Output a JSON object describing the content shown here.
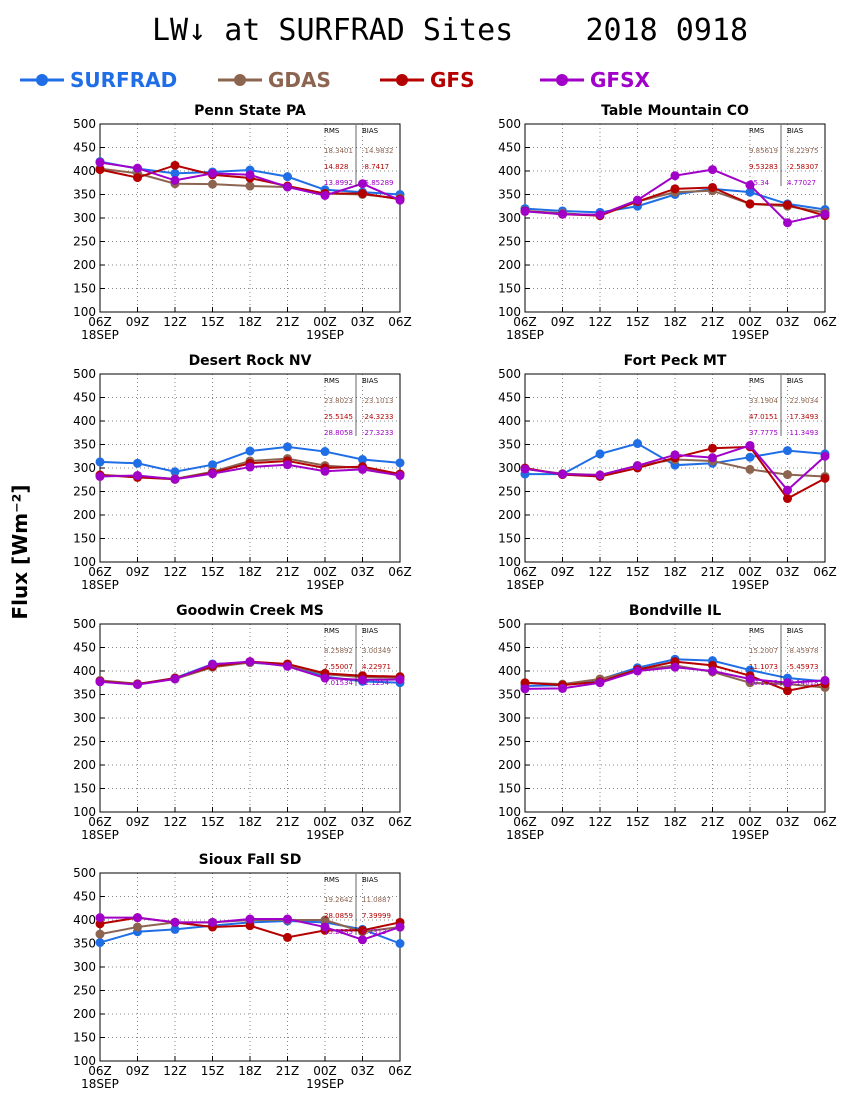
{
  "title": "LW↓ at SURFRAD Sites    2018 0918",
  "ylabel": "Flux [Wm⁻²]",
  "legend": [
    {
      "name": "SURFRAD",
      "color": "#1f6ee6",
      "icon": "circle-marker-line"
    },
    {
      "name": "GDAS",
      "color": "#8c6450",
      "icon": "circle-marker-line"
    },
    {
      "name": "GFS",
      "color": "#b40000",
      "icon": "circle-marker-line"
    },
    {
      "name": "GFSX",
      "color": "#a000c8",
      "icon": "circle-marker-line"
    }
  ],
  "stats_headers": [
    "RMS",
    "BIAS"
  ],
  "chart_data": [
    {
      "type": "line",
      "title": "Penn State PA",
      "categories": [
        "06Z",
        "09Z",
        "12Z",
        "15Z",
        "18Z",
        "21Z",
        "00Z",
        "03Z",
        "06Z"
      ],
      "date_labels": [
        "18SEP",
        "19SEP"
      ],
      "ylim": [
        100,
        500
      ],
      "yticks": [
        100,
        150,
        200,
        250,
        300,
        350,
        400,
        450,
        500
      ],
      "grid": true,
      "series": [
        {
          "name": "SURFRAD",
          "values": [
            420,
            405,
            395,
            398,
            402,
            388,
            360,
            355,
            350
          ]
        },
        {
          "name": "GDAS",
          "values": [
            405,
            395,
            373,
            372,
            368,
            366,
            352,
            350,
            342
          ]
        },
        {
          "name": "GFS",
          "values": [
            403,
            386,
            412,
            392,
            385,
            368,
            352,
            352,
            340
          ]
        },
        {
          "name": "GFSX",
          "values": [
            418,
            406,
            380,
            395,
            392,
            366,
            348,
            373,
            338
          ]
        }
      ],
      "stats": [
        {
          "series": "GDAS",
          "rms": "18.3401",
          "bias": "-14.9832"
        },
        {
          "series": "GFS",
          "rms": "14.828",
          "bias": "-8.7417"
        },
        {
          "series": "GFSX",
          "rms": "13.8992",
          "bias": "-5.85289"
        }
      ]
    },
    {
      "type": "line",
      "title": "Table Mountain CO",
      "categories": [
        "06Z",
        "09Z",
        "12Z",
        "15Z",
        "18Z",
        "21Z",
        "00Z",
        "03Z",
        "06Z"
      ],
      "date_labels": [
        "18SEP",
        "19SEP"
      ],
      "ylim": [
        100,
        500
      ],
      "yticks": [
        100,
        150,
        200,
        250,
        300,
        350,
        400,
        450,
        500
      ],
      "grid": true,
      "series": [
        {
          "name": "SURFRAD",
          "values": [
            320,
            315,
            312,
            325,
            350,
            362,
            355,
            330,
            318
          ]
        },
        {
          "name": "GDAS",
          "values": [
            315,
            310,
            305,
            335,
            355,
            358,
            330,
            325,
            312
          ]
        },
        {
          "name": "GFS",
          "values": [
            315,
            308,
            305,
            335,
            362,
            365,
            330,
            328,
            305
          ]
        },
        {
          "name": "GFSX",
          "values": [
            314,
            308,
            307,
            338,
            390,
            403,
            370,
            290,
            308
          ]
        }
      ],
      "stats": [
        {
          "series": "GDAS",
          "rms": "9.85619",
          "bias": "-8.22975"
        },
        {
          "series": "GFS",
          "rms": "9.53283",
          "bias": "-2.58307"
        },
        {
          "series": "GFSX",
          "rms": "25.34",
          "bias": "4.77027"
        }
      ]
    },
    {
      "type": "line",
      "title": "Desert Rock NV",
      "categories": [
        "06Z",
        "09Z",
        "12Z",
        "15Z",
        "18Z",
        "21Z",
        "00Z",
        "03Z",
        "06Z"
      ],
      "date_labels": [
        "18SEP",
        "19SEP"
      ],
      "ylim": [
        100,
        500
      ],
      "yticks": [
        100,
        150,
        200,
        250,
        300,
        350,
        400,
        450,
        500
      ],
      "grid": true,
      "series": [
        {
          "name": "SURFRAD",
          "values": [
            313,
            310,
            292,
            307,
            336,
            345,
            335,
            318,
            311
          ]
        },
        {
          "name": "GDAS",
          "values": [
            285,
            282,
            277,
            292,
            315,
            320,
            305,
            300,
            287
          ]
        },
        {
          "name": "GFS",
          "values": [
            285,
            280,
            276,
            290,
            310,
            315,
            300,
            303,
            287
          ]
        },
        {
          "name": "GFSX",
          "values": [
            282,
            284,
            276,
            288,
            302,
            307,
            293,
            297,
            284
          ]
        }
      ],
      "stats": [
        {
          "series": "GDAS",
          "rms": "23.8023",
          "bias": "-23.1013"
        },
        {
          "series": "GFS",
          "rms": "25.5145",
          "bias": "-24.3233"
        },
        {
          "series": "GFSX",
          "rms": "28.8058",
          "bias": "-27.3233"
        }
      ]
    },
    {
      "type": "line",
      "title": "Fort Peck MT",
      "categories": [
        "06Z",
        "09Z",
        "12Z",
        "15Z",
        "18Z",
        "21Z",
        "00Z",
        "03Z",
        "06Z"
      ],
      "date_labels": [
        "18SEP",
        "19SEP"
      ],
      "ylim": [
        100,
        500
      ],
      "yticks": [
        100,
        150,
        200,
        250,
        300,
        350,
        400,
        450,
        500
      ],
      "grid": true,
      "series": [
        {
          "name": "SURFRAD",
          "values": [
            287,
            287,
            330,
            352,
            306,
            310,
            323,
            337,
            330
          ]
        },
        {
          "name": "GDAS",
          "values": [
            298,
            288,
            285,
            305,
            318,
            315,
            297,
            286,
            282
          ]
        },
        {
          "name": "GFS",
          "values": [
            300,
            286,
            282,
            300,
            322,
            342,
            345,
            235,
            278
          ]
        },
        {
          "name": "GFSX",
          "values": [
            298,
            287,
            285,
            305,
            328,
            322,
            348,
            253,
            325
          ]
        }
      ],
      "stats": [
        {
          "series": "GDAS",
          "rms": "33.1904",
          "bias": "-22.9034"
        },
        {
          "series": "GFS",
          "rms": "47.0151",
          "bias": "-17.3493"
        },
        {
          "series": "GFSX",
          "rms": "37.7775",
          "bias": "-11.3493"
        }
      ]
    },
    {
      "type": "line",
      "title": "Goodwin Creek MS",
      "categories": [
        "06Z",
        "09Z",
        "12Z",
        "15Z",
        "18Z",
        "21Z",
        "00Z",
        "03Z",
        "06Z"
      ],
      "date_labels": [
        "18SEP",
        "19SEP"
      ],
      "ylim": [
        100,
        500
      ],
      "yticks": [
        100,
        150,
        200,
        250,
        300,
        350,
        400,
        450,
        500
      ],
      "grid": true,
      "series": [
        {
          "name": "SURFRAD",
          "values": [
            378,
            372,
            385,
            415,
            418,
            412,
            388,
            378,
            375
          ]
        },
        {
          "name": "GDAS",
          "values": [
            380,
            373,
            383,
            408,
            418,
            413,
            393,
            387,
            386
          ]
        },
        {
          "name": "GFS",
          "values": [
            378,
            372,
            385,
            410,
            420,
            415,
            395,
            390,
            388
          ]
        },
        {
          "name": "GFSX",
          "values": [
            377,
            371,
            383,
            414,
            420,
            410,
            385,
            381,
            382
          ]
        }
      ],
      "stats": [
        {
          "series": "GDAS",
          "rms": "8.25892",
          "bias": "3.00349"
        },
        {
          "series": "GFS",
          "rms": "7.55007",
          "bias": "4.22971"
        },
        {
          "series": "GFSX",
          "rms": "7.01534",
          "bias": "-2.1254"
        }
      ]
    },
    {
      "type": "line",
      "title": "Bondville IL",
      "categories": [
        "06Z",
        "09Z",
        "12Z",
        "15Z",
        "18Z",
        "21Z",
        "00Z",
        "03Z",
        "06Z"
      ],
      "date_labels": [
        "18SEP",
        "19SEP"
      ],
      "ylim": [
        100,
        500
      ],
      "yticks": [
        100,
        150,
        200,
        250,
        300,
        350,
        400,
        450,
        500
      ],
      "grid": true,
      "series": [
        {
          "name": "SURFRAD",
          "values": [
            368,
            370,
            382,
            407,
            425,
            422,
            402,
            385,
            378
          ]
        },
        {
          "name": "GDAS",
          "values": [
            375,
            372,
            383,
            402,
            412,
            398,
            375,
            372,
            365
          ]
        },
        {
          "name": "GFS",
          "values": [
            375,
            370,
            377,
            403,
            420,
            412,
            390,
            358,
            373
          ]
        },
        {
          "name": "GFSX",
          "values": [
            362,
            363,
            375,
            400,
            408,
            400,
            383,
            375,
            380
          ]
        }
      ],
      "stats": [
        {
          "series": "GDAS",
          "rms": "15.2007",
          "bias": "-8.45978"
        },
        {
          "series": "GFS",
          "rms": "11.1073",
          "bias": "-5.45973"
        },
        {
          "series": "GFSX",
          "rms": "10.1019",
          "bias": "-9.14618"
        }
      ]
    },
    {
      "type": "line",
      "title": "Sioux Fall SD",
      "categories": [
        "06Z",
        "09Z",
        "12Z",
        "15Z",
        "18Z",
        "21Z",
        "00Z",
        "03Z",
        "06Z"
      ],
      "date_labels": [
        "18SEP",
        "19SEP"
      ],
      "ylim": [
        100,
        500
      ],
      "yticks": [
        100,
        150,
        200,
        250,
        300,
        350,
        400,
        450,
        500
      ],
      "grid": true,
      "series": [
        {
          "name": "SURFRAD",
          "values": [
            352,
            375,
            380,
            388,
            395,
            398,
            395,
            380,
            350
          ]
        },
        {
          "name": "GDAS",
          "values": [
            370,
            385,
            395,
            395,
            400,
            400,
            400,
            375,
            385
          ]
        },
        {
          "name": "GFS",
          "values": [
            392,
            405,
            395,
            385,
            388,
            363,
            378,
            378,
            395
          ]
        },
        {
          "name": "GFSX",
          "values": [
            405,
            405,
            395,
            395,
            402,
            402,
            385,
            358,
            385
          ]
        }
      ],
      "stats": [
        {
          "series": "GDAS",
          "rms": "19.2642",
          "bias": "11.0887"
        },
        {
          "series": "GFS",
          "rms": "28.0859",
          "bias": "7.39999"
        },
        {
          "series": "GFSX",
          "rms": "15.2883",
          "bias": "8.7313"
        }
      ]
    }
  ]
}
